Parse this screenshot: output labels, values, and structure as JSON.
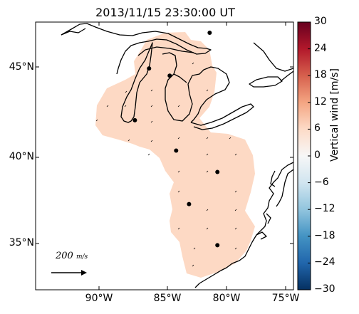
{
  "title": "2013/11/15 23:30:00 UT",
  "lat_labels": [
    "45°N",
    "40°N",
    "35°N"
  ],
  "lon_labels": [
    "90°W",
    "85°W",
    "80°W",
    "75°W"
  ],
  "colorbar": {
    "label": "Vertical wind [m/s]",
    "ticks": [
      "30",
      "24",
      "18",
      "12",
      "6",
      "0",
      "−6",
      "−12",
      "−18",
      "−24",
      "−30"
    ],
    "colormap": "RdBu_r",
    "range": [
      -30,
      30
    ]
  },
  "scale_arrow": {
    "value_label": "200",
    "unit_label": "m/s"
  },
  "colors": {
    "field_fill": "#fdd9c4",
    "coast": "#000000"
  },
  "map": {
    "lon_range": [
      -94.5,
      -74.5
    ],
    "lat_range": [
      32.5,
      47.5
    ]
  },
  "stations": [
    {
      "lon": -81.0,
      "lat": 46.9
    },
    {
      "lon": -85.7,
      "lat": 44.9
    },
    {
      "lon": -84.1,
      "lat": 44.5
    },
    {
      "lon": -86.8,
      "lat": 42.0
    },
    {
      "lon": -83.6,
      "lat": 40.3
    },
    {
      "lon": -80.4,
      "lat": 39.1
    },
    {
      "lon": -82.6,
      "lat": 37.3
    },
    {
      "lon": -80.4,
      "lat": 35.0
    }
  ]
}
